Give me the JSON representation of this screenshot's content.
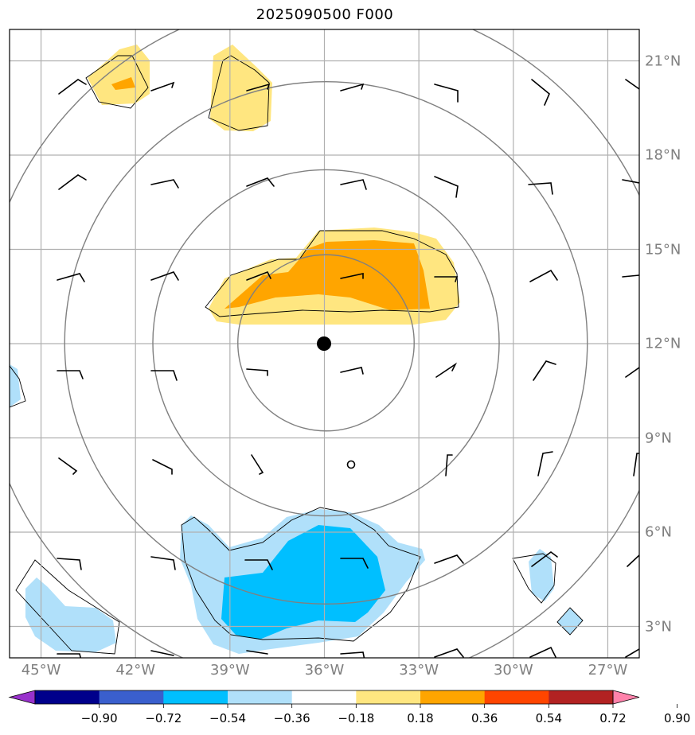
{
  "title": "2025090500 F000",
  "map": {
    "lon_range": [
      -46,
      -26
    ],
    "lat_range": [
      2,
      22
    ],
    "center": {
      "lon": -36,
      "lat": 12
    },
    "lon_ticks": [
      -45,
      -42,
      -39,
      -36,
      -33,
      -30,
      -27
    ],
    "lat_ticks": [
      3,
      6,
      9,
      12,
      15,
      18,
      21
    ],
    "lon_labels": [
      "45°W",
      "42°W",
      "39°W",
      "36°W",
      "33°W",
      "30°W",
      "27°W"
    ],
    "lat_labels": [
      "3°N",
      "6°N",
      "9°N",
      "12°N",
      "15°N",
      "18°N",
      "21°N"
    ],
    "range_rings_deg": [
      2.8,
      5.5,
      8.3,
      11
    ]
  },
  "colorbar": {
    "ticks": [
      "−0.90",
      "−0.72",
      "−0.54",
      "−0.36",
      "−0.18",
      "0.18",
      "0.36",
      "0.54",
      "0.72",
      "0.90"
    ],
    "colors": [
      "#9932cc",
      "#00008b",
      "#3a5fcd",
      "#00bfff",
      "#b0e0fa",
      "#ffffff",
      "#ffe680",
      "#ffa500",
      "#ff4500",
      "#b22222",
      "#ff82ab"
    ]
  },
  "colors": {
    "grid": "#b0b0b0",
    "ring": "#808080",
    "label": "#808080"
  }
}
